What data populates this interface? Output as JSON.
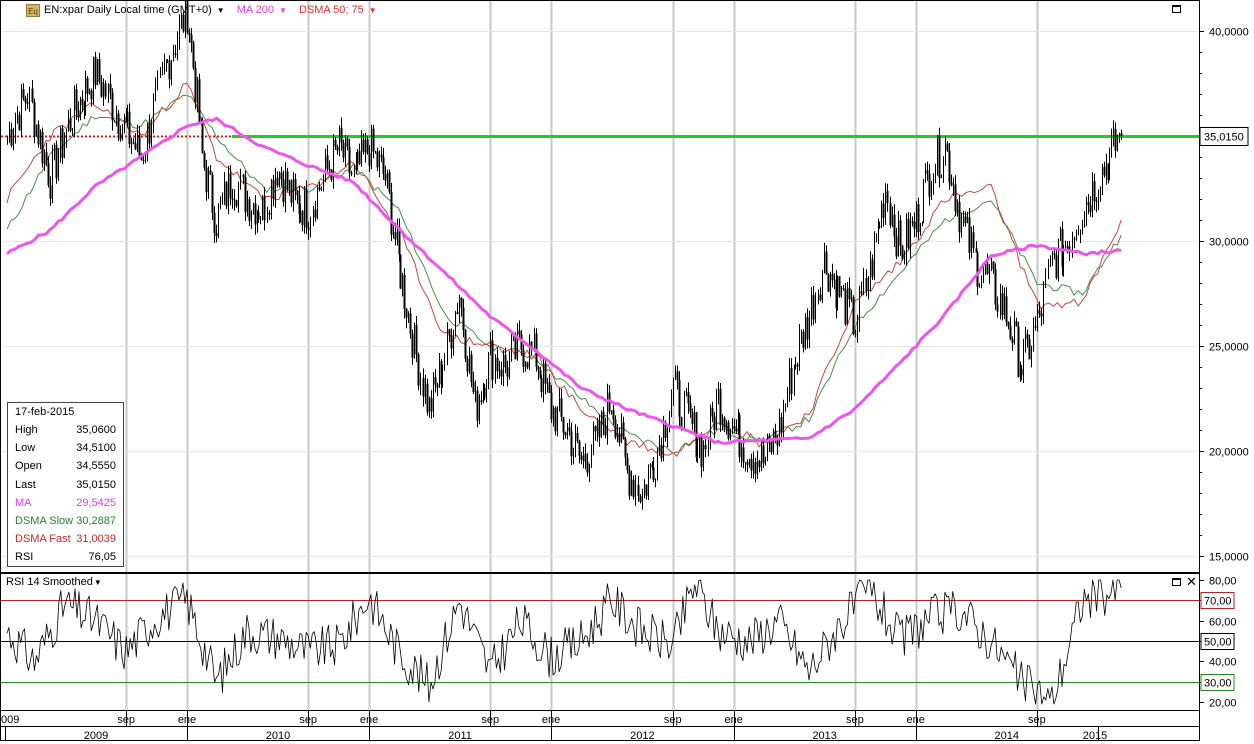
{
  "header": {
    "icon_text": "Eq",
    "instrument": "EN:xpar Daily Local time (GMT+0)",
    "ma_label": "MA 200",
    "dsma_label": "DSMA 50; 75",
    "rsi_label": "RSI 14 Smoothed"
  },
  "info_box": {
    "date": "17-feb-2015",
    "rows": [
      {
        "label": "High",
        "value": "35,0600",
        "color": "#000000"
      },
      {
        "label": "Low",
        "value": "34,5100",
        "color": "#000000"
      },
      {
        "label": "Open",
        "value": "34,5550",
        "color": "#000000"
      },
      {
        "label": "Last",
        "value": "35,0150",
        "color": "#000000"
      },
      {
        "label": "MA",
        "value": "29,5425",
        "color": "#e040e0"
      },
      {
        "label": "DSMA Slow",
        "value": "30,2887",
        "color": "#2e7d32"
      },
      {
        "label": "DSMA Fast",
        "value": "31,0039",
        "color": "#c62828"
      },
      {
        "label": "RSI",
        "value": "76,05",
        "color": "#000000"
      }
    ]
  },
  "colors": {
    "price": "#000000",
    "ma": "#ee55ee",
    "dsma_slow": "#4c8a4c",
    "dsma_fast": "#d0443a",
    "hline": "#22cc22",
    "hline_pre": "#cc2222",
    "rsi_70": "#b22222",
    "rsi_50": "#000000",
    "rsi_30": "#228b22",
    "grid": "#c8c8c8"
  },
  "chart_data": [
    {
      "type": "line",
      "title": "EN:xpar Daily Local time (GMT+0)",
      "y_ticks": [
        "15,0000",
        "20,0000",
        "25,0000",
        "30,0000",
        "35,0000",
        "40,0000"
      ],
      "ylim": [
        14,
        41.3
      ],
      "horizontal_line": {
        "value": 35.015,
        "label": "35,0150"
      },
      "series": [
        {
          "name": "EN:xpar",
          "x": [
            "2009-01-05",
            "2009-02-15",
            "2009-04-01",
            "2009-05-15",
            "2009-07-01",
            "2009-08-15",
            "2009-10-01",
            "2009-11-15",
            "2010-01-01",
            "2010-02-01",
            "2010-03-01",
            "2010-04-01",
            "2010-05-01",
            "2010-06-01",
            "2010-07-01",
            "2010-08-01",
            "2010-09-01",
            "2010-10-01",
            "2010-11-01",
            "2010-12-01",
            "2011-01-01",
            "2011-02-01",
            "2011-03-01",
            "2011-04-01",
            "2011-05-01",
            "2011-06-01",
            "2011-07-01",
            "2011-08-01",
            "2011-09-01",
            "2011-10-01",
            "2011-11-01",
            "2011-12-01",
            "2012-01-01",
            "2012-02-01",
            "2012-03-01",
            "2012-04-01",
            "2012-05-01",
            "2012-06-01",
            "2012-07-01",
            "2012-08-01",
            "2012-09-01",
            "2012-10-01",
            "2012-11-01",
            "2012-12-01",
            "2013-01-01",
            "2013-02-01",
            "2013-03-01",
            "2013-04-01",
            "2013-05-01",
            "2013-06-01",
            "2013-07-01",
            "2013-08-01",
            "2013-09-01",
            "2013-10-01",
            "2013-11-01",
            "2013-12-01",
            "2014-01-01",
            "2014-02-01",
            "2014-03-01",
            "2014-04-01",
            "2014-05-01",
            "2014-06-01",
            "2014-07-01",
            "2014-08-01",
            "2014-09-01",
            "2014-10-01",
            "2014-11-01",
            "2014-12-01",
            "2015-01-01",
            "2015-02-17"
          ],
          "values": [
            35.0,
            37.0,
            33.0,
            36.0,
            38.0,
            36.0,
            34.0,
            38.0,
            41.0,
            34.0,
            31.0,
            33.0,
            32.0,
            31.5,
            33.5,
            32.0,
            31.5,
            33.0,
            34.5,
            33.0,
            34.5,
            33.0,
            29.0,
            25.0,
            22.0,
            24.5,
            27.5,
            22.0,
            24.5,
            24.0,
            25.0,
            24.5,
            22.0,
            21.0,
            19.5,
            20.5,
            22.5,
            19.0,
            18.0,
            20.0,
            23.0,
            21.5,
            20.0,
            22.5,
            21.0,
            20.0,
            19.5,
            21.0,
            24.0,
            26.5,
            29.0,
            27.5,
            26.0,
            28.5,
            32.5,
            29.5,
            31.0,
            33.5,
            34.5,
            31.0,
            29.0,
            28.0,
            26.5,
            24.0,
            26.0,
            29.0,
            30.0,
            31.5,
            33.0,
            35.015
          ]
        },
        {
          "name": "MA 200",
          "x": [
            "2009-01-05",
            "2009-04-01",
            "2009-07-01",
            "2009-10-01",
            "2010-01-01",
            "2010-03-01",
            "2010-06-01",
            "2010-09-01",
            "2010-12-01",
            "2011-03-01",
            "2011-06-01",
            "2011-09-01",
            "2011-12-01",
            "2012-03-01",
            "2012-06-01",
            "2012-09-01",
            "2012-12-01",
            "2013-03-01",
            "2013-06-01",
            "2013-09-01",
            "2013-12-01",
            "2014-03-01",
            "2014-06-01",
            "2014-09-01",
            "2014-12-01",
            "2015-02-17"
          ],
          "values": [
            29.4,
            30.5,
            32.6,
            34.0,
            35.5,
            35.8,
            34.5,
            33.6,
            32.8,
            30.6,
            28.5,
            26.4,
            24.8,
            23.0,
            22.0,
            21.2,
            20.4,
            20.5,
            20.6,
            22.0,
            24.2,
            26.5,
            29.3,
            29.8,
            29.4,
            29.5425
          ]
        },
        {
          "name": "DSMA Slow",
          "x": [
            "2009-01-05",
            "2009-04-01",
            "2009-07-01",
            "2009-10-01",
            "2010-01-01",
            "2010-03-01",
            "2010-06-01",
            "2010-09-01",
            "2010-12-01",
            "2011-03-01",
            "2011-06-01",
            "2011-09-01",
            "2011-12-01",
            "2012-03-01",
            "2012-06-01",
            "2012-09-01",
            "2012-12-01",
            "2013-03-01",
            "2013-06-01",
            "2013-09-01",
            "2013-12-01",
            "2014-03-01",
            "2014-06-01",
            "2014-09-01",
            "2014-12-01",
            "2015-02-17"
          ],
          "values": [
            30.5,
            34.0,
            36.0,
            35.5,
            37.0,
            35.0,
            32.5,
            32.5,
            33.5,
            31.5,
            26.5,
            25.0,
            24.5,
            22.5,
            20.8,
            20.0,
            21.0,
            20.5,
            21.5,
            26.0,
            28.5,
            31.0,
            32.0,
            28.0,
            27.5,
            30.2887
          ]
        },
        {
          "name": "DSMA Fast",
          "x": [
            "2009-01-05",
            "2009-04-01",
            "2009-07-01",
            "2009-10-01",
            "2010-01-01",
            "2010-03-01",
            "2010-06-01",
            "2010-09-01",
            "2010-12-01",
            "2011-03-01",
            "2011-06-01",
            "2011-09-01",
            "2011-12-01",
            "2012-03-01",
            "2012-06-01",
            "2012-09-01",
            "2012-12-01",
            "2013-03-01",
            "2013-06-01",
            "2013-09-01",
            "2013-12-01",
            "2014-03-01",
            "2014-06-01",
            "2014-09-01",
            "2014-12-01",
            "2015-02-17"
          ],
          "values": [
            32.0,
            35.0,
            36.5,
            35.0,
            37.5,
            34.0,
            32.0,
            32.5,
            33.8,
            30.5,
            25.5,
            25.0,
            24.5,
            22.0,
            20.5,
            19.8,
            21.5,
            20.3,
            21.8,
            27.0,
            29.0,
            32.0,
            32.5,
            27.0,
            27.0,
            31.0039
          ]
        }
      ]
    },
    {
      "type": "line",
      "title": "RSI 14 Smoothed",
      "y_ticks": [
        "20,00",
        "30,00",
        "40,00",
        "50,00",
        "60,00",
        "70,00",
        "80,00"
      ],
      "ylim": [
        16,
        82
      ],
      "levels": [
        {
          "value": 70,
          "label": "70,00"
        },
        {
          "value": 50,
          "label": "50,00"
        },
        {
          "value": 30,
          "label": "30,00"
        }
      ],
      "series": [
        {
          "name": "RSI",
          "x": [
            "2009-01-05",
            "2009-03-01",
            "2009-05-01",
            "2009-07-01",
            "2009-09-01",
            "2009-11-01",
            "2010-01-01",
            "2010-03-01",
            "2010-05-01",
            "2010-07-01",
            "2010-09-01",
            "2010-11-01",
            "2011-01-01",
            "2011-03-01",
            "2011-05-01",
            "2011-07-01",
            "2011-09-01",
            "2011-11-01",
            "2012-01-01",
            "2012-03-01",
            "2012-05-01",
            "2012-07-01",
            "2012-09-01",
            "2012-10-15",
            "2012-12-01",
            "2013-02-01",
            "2013-04-01",
            "2013-06-01",
            "2013-08-01",
            "2013-10-01",
            "2013-12-01",
            "2014-02-01",
            "2014-04-01",
            "2014-06-01",
            "2014-08-01",
            "2014-10-01",
            "2014-12-01",
            "2015-02-17"
          ],
          "values": [
            55,
            40,
            68,
            60,
            45,
            62,
            70,
            30,
            55,
            52,
            45,
            48,
            72,
            45,
            28,
            70,
            35,
            60,
            42,
            50,
            70,
            55,
            48,
            78,
            55,
            50,
            60,
            35,
            58,
            75,
            50,
            62,
            65,
            50,
            30,
            20,
            70,
            76.05
          ]
        }
      ]
    }
  ],
  "x_axis": {
    "months": [
      {
        "date": "2009-09-01",
        "label": "sep"
      },
      {
        "date": "2010-01-01",
        "label": "ene"
      },
      {
        "date": "2010-09-01",
        "label": "sep"
      },
      {
        "date": "2011-01-01",
        "label": "ene"
      },
      {
        "date": "2011-09-01",
        "label": "sep"
      },
      {
        "date": "2012-01-01",
        "label": "ene"
      },
      {
        "date": "2012-09-01",
        "label": "sep"
      },
      {
        "date": "2013-01-01",
        "label": "ene"
      },
      {
        "date": "2013-09-01",
        "label": "sep"
      },
      {
        "date": "2014-01-01",
        "label": "ene"
      },
      {
        "date": "2014-09-01",
        "label": "sep"
      }
    ],
    "years": [
      {
        "date": "2009-01-01",
        "label": "2009"
      },
      {
        "date": "2010-01-01",
        "label": "2010"
      },
      {
        "date": "2011-01-01",
        "label": "2011"
      },
      {
        "date": "2012-01-01",
        "label": "2012"
      },
      {
        "date": "2013-01-01",
        "label": "2013"
      },
      {
        "date": "2014-01-01",
        "label": "2014"
      },
      {
        "date": "2015-01-01",
        "label": "2015"
      }
    ],
    "clipped_year_label": "009",
    "start_date": "2008-12-22",
    "end_date": "2015-07-23"
  }
}
